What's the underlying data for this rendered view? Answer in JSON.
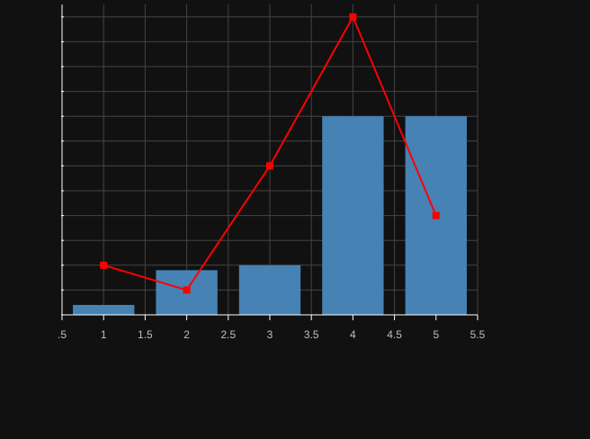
{
  "chart_data": {
    "type": "bar",
    "title": "",
    "xlabel": "",
    "ylabel": "",
    "xlim": [
      0.5,
      5.5
    ],
    "ylim": [
      0,
      12.5
    ],
    "x_ticks": [
      0.5,
      1,
      1.5,
      2,
      2.5,
      3,
      3.5,
      4,
      4.5,
      5,
      5.5
    ],
    "x_tick_labels": [
      ".5",
      "1",
      "1.5",
      "2",
      "2.5",
      "3",
      "3.5",
      "4",
      "4.5",
      "5",
      "5.5"
    ],
    "y_gridlines": [
      0,
      1,
      2,
      3,
      4,
      5,
      6,
      7,
      8,
      9,
      10,
      11,
      12
    ],
    "y_tick_labels_visible": false,
    "grid": true,
    "series": [
      {
        "type": "bar",
        "color": "#4682b4",
        "x": [
          1,
          2,
          3,
          4,
          5
        ],
        "values": [
          0.4,
          1.8,
          2.0,
          8.0,
          8.0
        ]
      },
      {
        "type": "line",
        "color": "#ff0000",
        "marker": "square",
        "x": [
          1,
          2,
          3,
          4,
          5
        ],
        "values": [
          2.0,
          1.0,
          6.0,
          12.0,
          4.0
        ]
      }
    ]
  },
  "colors": {
    "background": "#111111",
    "grid": "#444444",
    "axis": "#ffffff",
    "tick_text": "#bfbfbf"
  }
}
